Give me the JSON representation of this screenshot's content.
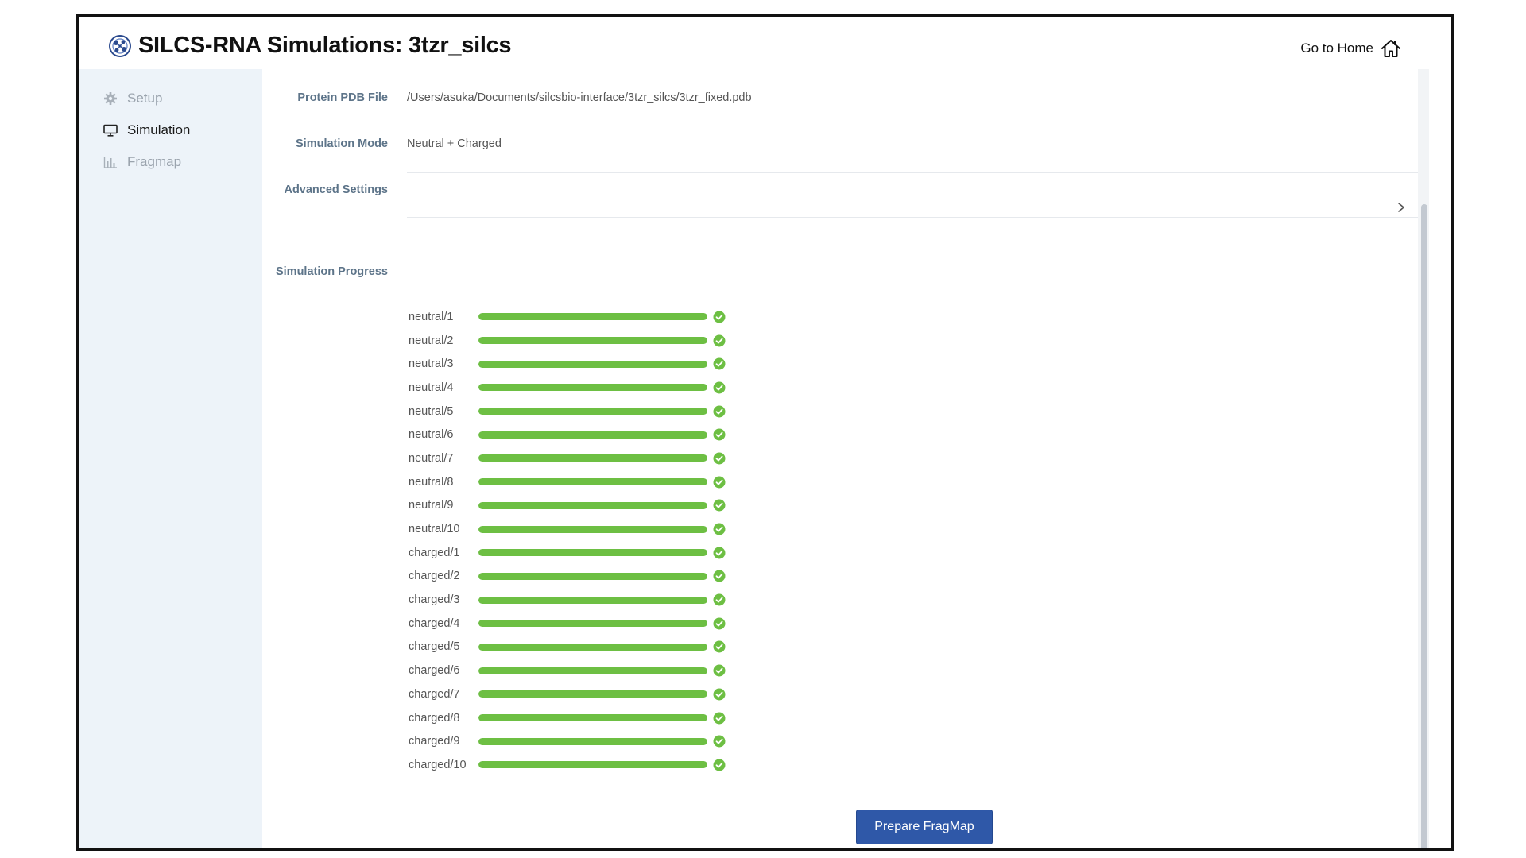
{
  "app": {
    "title": "SILCS-RNA Simulations: 3tzr_silcs",
    "go_home_label": "Go to Home"
  },
  "sidebar": {
    "items": [
      {
        "label": "Setup",
        "icon": "gear-icon",
        "active": false
      },
      {
        "label": "Simulation",
        "icon": "monitor-icon",
        "active": true
      },
      {
        "label": "Fragmap",
        "icon": "bar-chart-icon",
        "active": false
      }
    ]
  },
  "form": {
    "protein_pdb_label": "Protein PDB File",
    "protein_pdb_value": "/Users/asuka/Documents/silcsbio-interface/3tzr_silcs/3tzr_fixed.pdb",
    "simulation_mode_label": "Simulation Mode",
    "simulation_mode_value": "Neutral + Charged",
    "advanced_settings_label": "Advanced Settings"
  },
  "progress": {
    "label": "Simulation Progress",
    "color": "#6dbf43",
    "rows": [
      {
        "name": "neutral/1",
        "percent": 100,
        "status": "complete"
      },
      {
        "name": "neutral/2",
        "percent": 100,
        "status": "complete"
      },
      {
        "name": "neutral/3",
        "percent": 100,
        "status": "complete"
      },
      {
        "name": "neutral/4",
        "percent": 100,
        "status": "complete"
      },
      {
        "name": "neutral/5",
        "percent": 100,
        "status": "complete"
      },
      {
        "name": "neutral/6",
        "percent": 100,
        "status": "complete"
      },
      {
        "name": "neutral/7",
        "percent": 100,
        "status": "complete"
      },
      {
        "name": "neutral/8",
        "percent": 100,
        "status": "complete"
      },
      {
        "name": "neutral/9",
        "percent": 100,
        "status": "complete"
      },
      {
        "name": "neutral/10",
        "percent": 100,
        "status": "complete"
      },
      {
        "name": "charged/1",
        "percent": 100,
        "status": "complete"
      },
      {
        "name": "charged/2",
        "percent": 100,
        "status": "complete"
      },
      {
        "name": "charged/3",
        "percent": 100,
        "status": "complete"
      },
      {
        "name": "charged/4",
        "percent": 100,
        "status": "complete"
      },
      {
        "name": "charged/5",
        "percent": 100,
        "status": "complete"
      },
      {
        "name": "charged/6",
        "percent": 100,
        "status": "complete"
      },
      {
        "name": "charged/7",
        "percent": 100,
        "status": "complete"
      },
      {
        "name": "charged/8",
        "percent": 100,
        "status": "complete"
      },
      {
        "name": "charged/9",
        "percent": 100,
        "status": "complete"
      },
      {
        "name": "charged/10",
        "percent": 100,
        "status": "complete"
      }
    ]
  },
  "actions": {
    "prepare_fragmap_label": "Prepare FragMap",
    "button_color": "#2f58a8"
  }
}
